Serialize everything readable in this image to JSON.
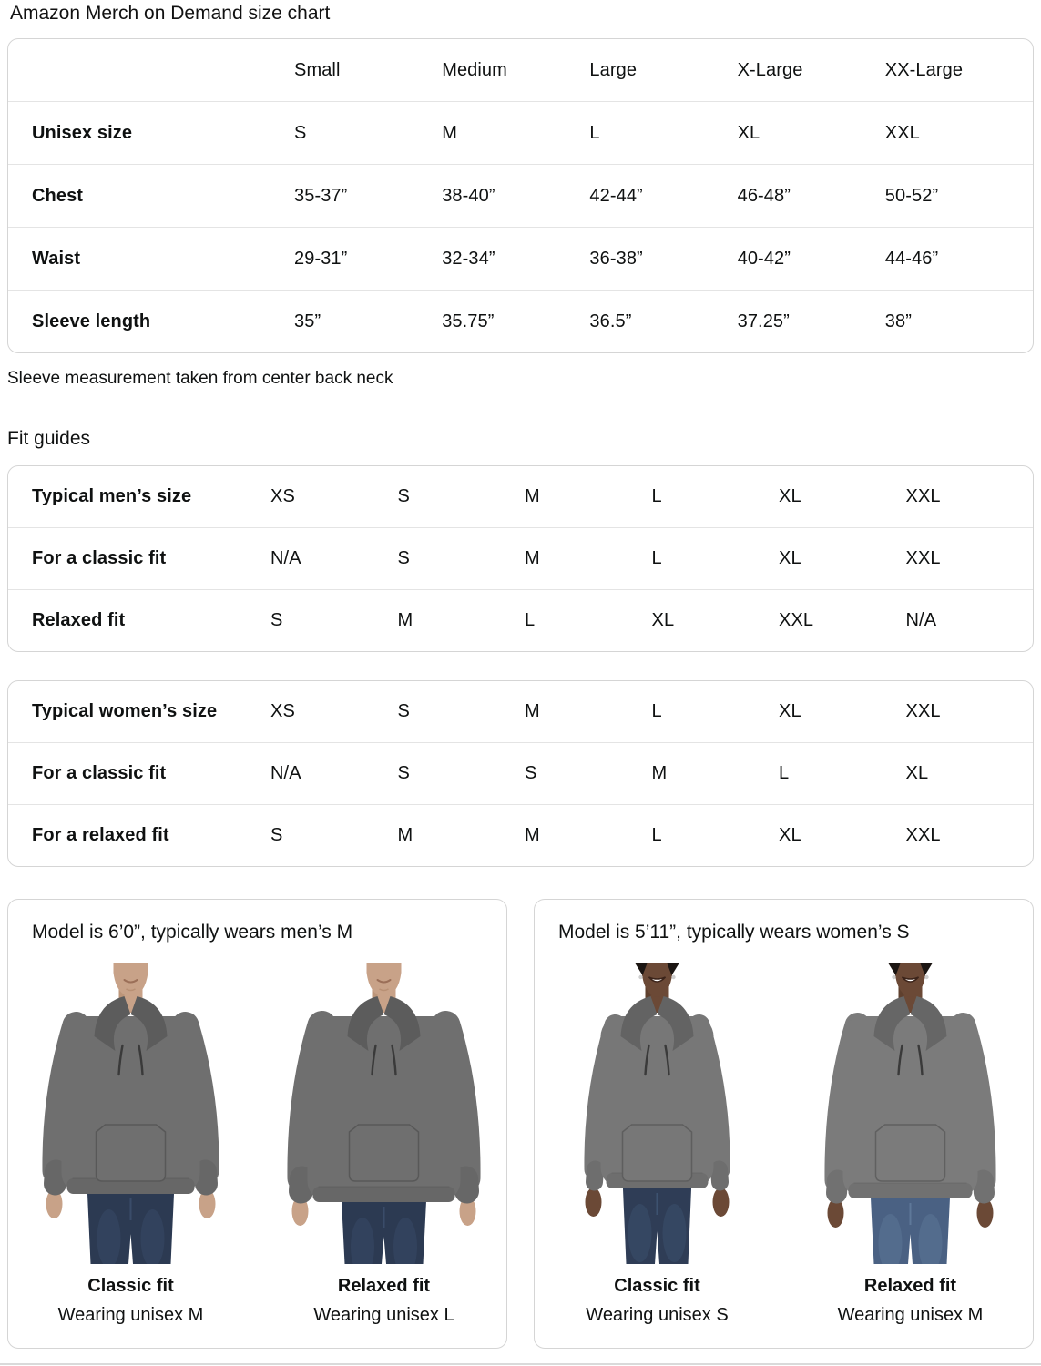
{
  "page": {
    "title": "Amazon Merch on Demand size chart",
    "note": "Sleeve measurement taken from center back neck",
    "fit_guides_heading": "Fit guides"
  },
  "size_table": {
    "columns": [
      "Small",
      "Medium",
      "Large",
      "X-Large",
      "XX-Large"
    ],
    "rows": [
      {
        "label": "Unisex size",
        "values": [
          "S",
          "M",
          "L",
          "XL",
          "XXL"
        ]
      },
      {
        "label": "Chest",
        "values": [
          "35-37”",
          "38-40”",
          "42-44”",
          "46-48”",
          "50-52”"
        ]
      },
      {
        "label": "Waist",
        "values": [
          "29-31”",
          "32-34”",
          "36-38”",
          "40-42”",
          "44-46”"
        ]
      },
      {
        "label": "Sleeve length",
        "values": [
          "35”",
          "35.75”",
          "36.5”",
          "37.25”",
          "38”"
        ]
      }
    ]
  },
  "fit_tables": [
    {
      "rows": [
        {
          "label": "Typical men’s size",
          "values": [
            "XS",
            "S",
            "M",
            "L",
            "XL",
            "XXL"
          ]
        },
        {
          "label": "For a classic fit",
          "values": [
            "N/A",
            "S",
            "M",
            "L",
            "XL",
            "XXL"
          ]
        },
        {
          "label": "Relaxed fit",
          "values": [
            "S",
            "M",
            "L",
            "XL",
            "XXL",
            "N/A"
          ]
        }
      ]
    },
    {
      "rows": [
        {
          "label": "Typical women’s size",
          "values": [
            "XS",
            "S",
            "M",
            "L",
            "XL",
            "XXL"
          ]
        },
        {
          "label": "For a classic fit",
          "values": [
            "N/A",
            "S",
            "S",
            "M",
            "L",
            "XL"
          ]
        },
        {
          "label": "For a relaxed fit",
          "values": [
            "S",
            "M",
            "M",
            "L",
            "XL",
            "XXL"
          ]
        }
      ]
    }
  ],
  "model_cards": [
    {
      "title": "Model is 6’0”, typically wears men’s M",
      "models": [
        {
          "fit": "Classic fit",
          "wearing": "Wearing unisex M",
          "variant": "male-classic"
        },
        {
          "fit": "Relaxed fit",
          "wearing": "Wearing unisex L",
          "variant": "male-relaxed"
        }
      ]
    },
    {
      "title": "Model is 5’11”, typically wears women’s S",
      "models": [
        {
          "fit": "Classic fit",
          "wearing": "Wearing unisex S",
          "variant": "female-classic"
        },
        {
          "fit": "Relaxed fit",
          "wearing": "Wearing unisex M",
          "variant": "female-relaxed"
        }
      ]
    }
  ],
  "colors": {
    "text": "#0f1111",
    "table_border": "#d5d5d5",
    "row_divider": "#e4e4e4",
    "hoodie_gray": "#6f6f6f",
    "jeans_dark": "#2c3a52",
    "jeans_medium": "#4a6183"
  }
}
